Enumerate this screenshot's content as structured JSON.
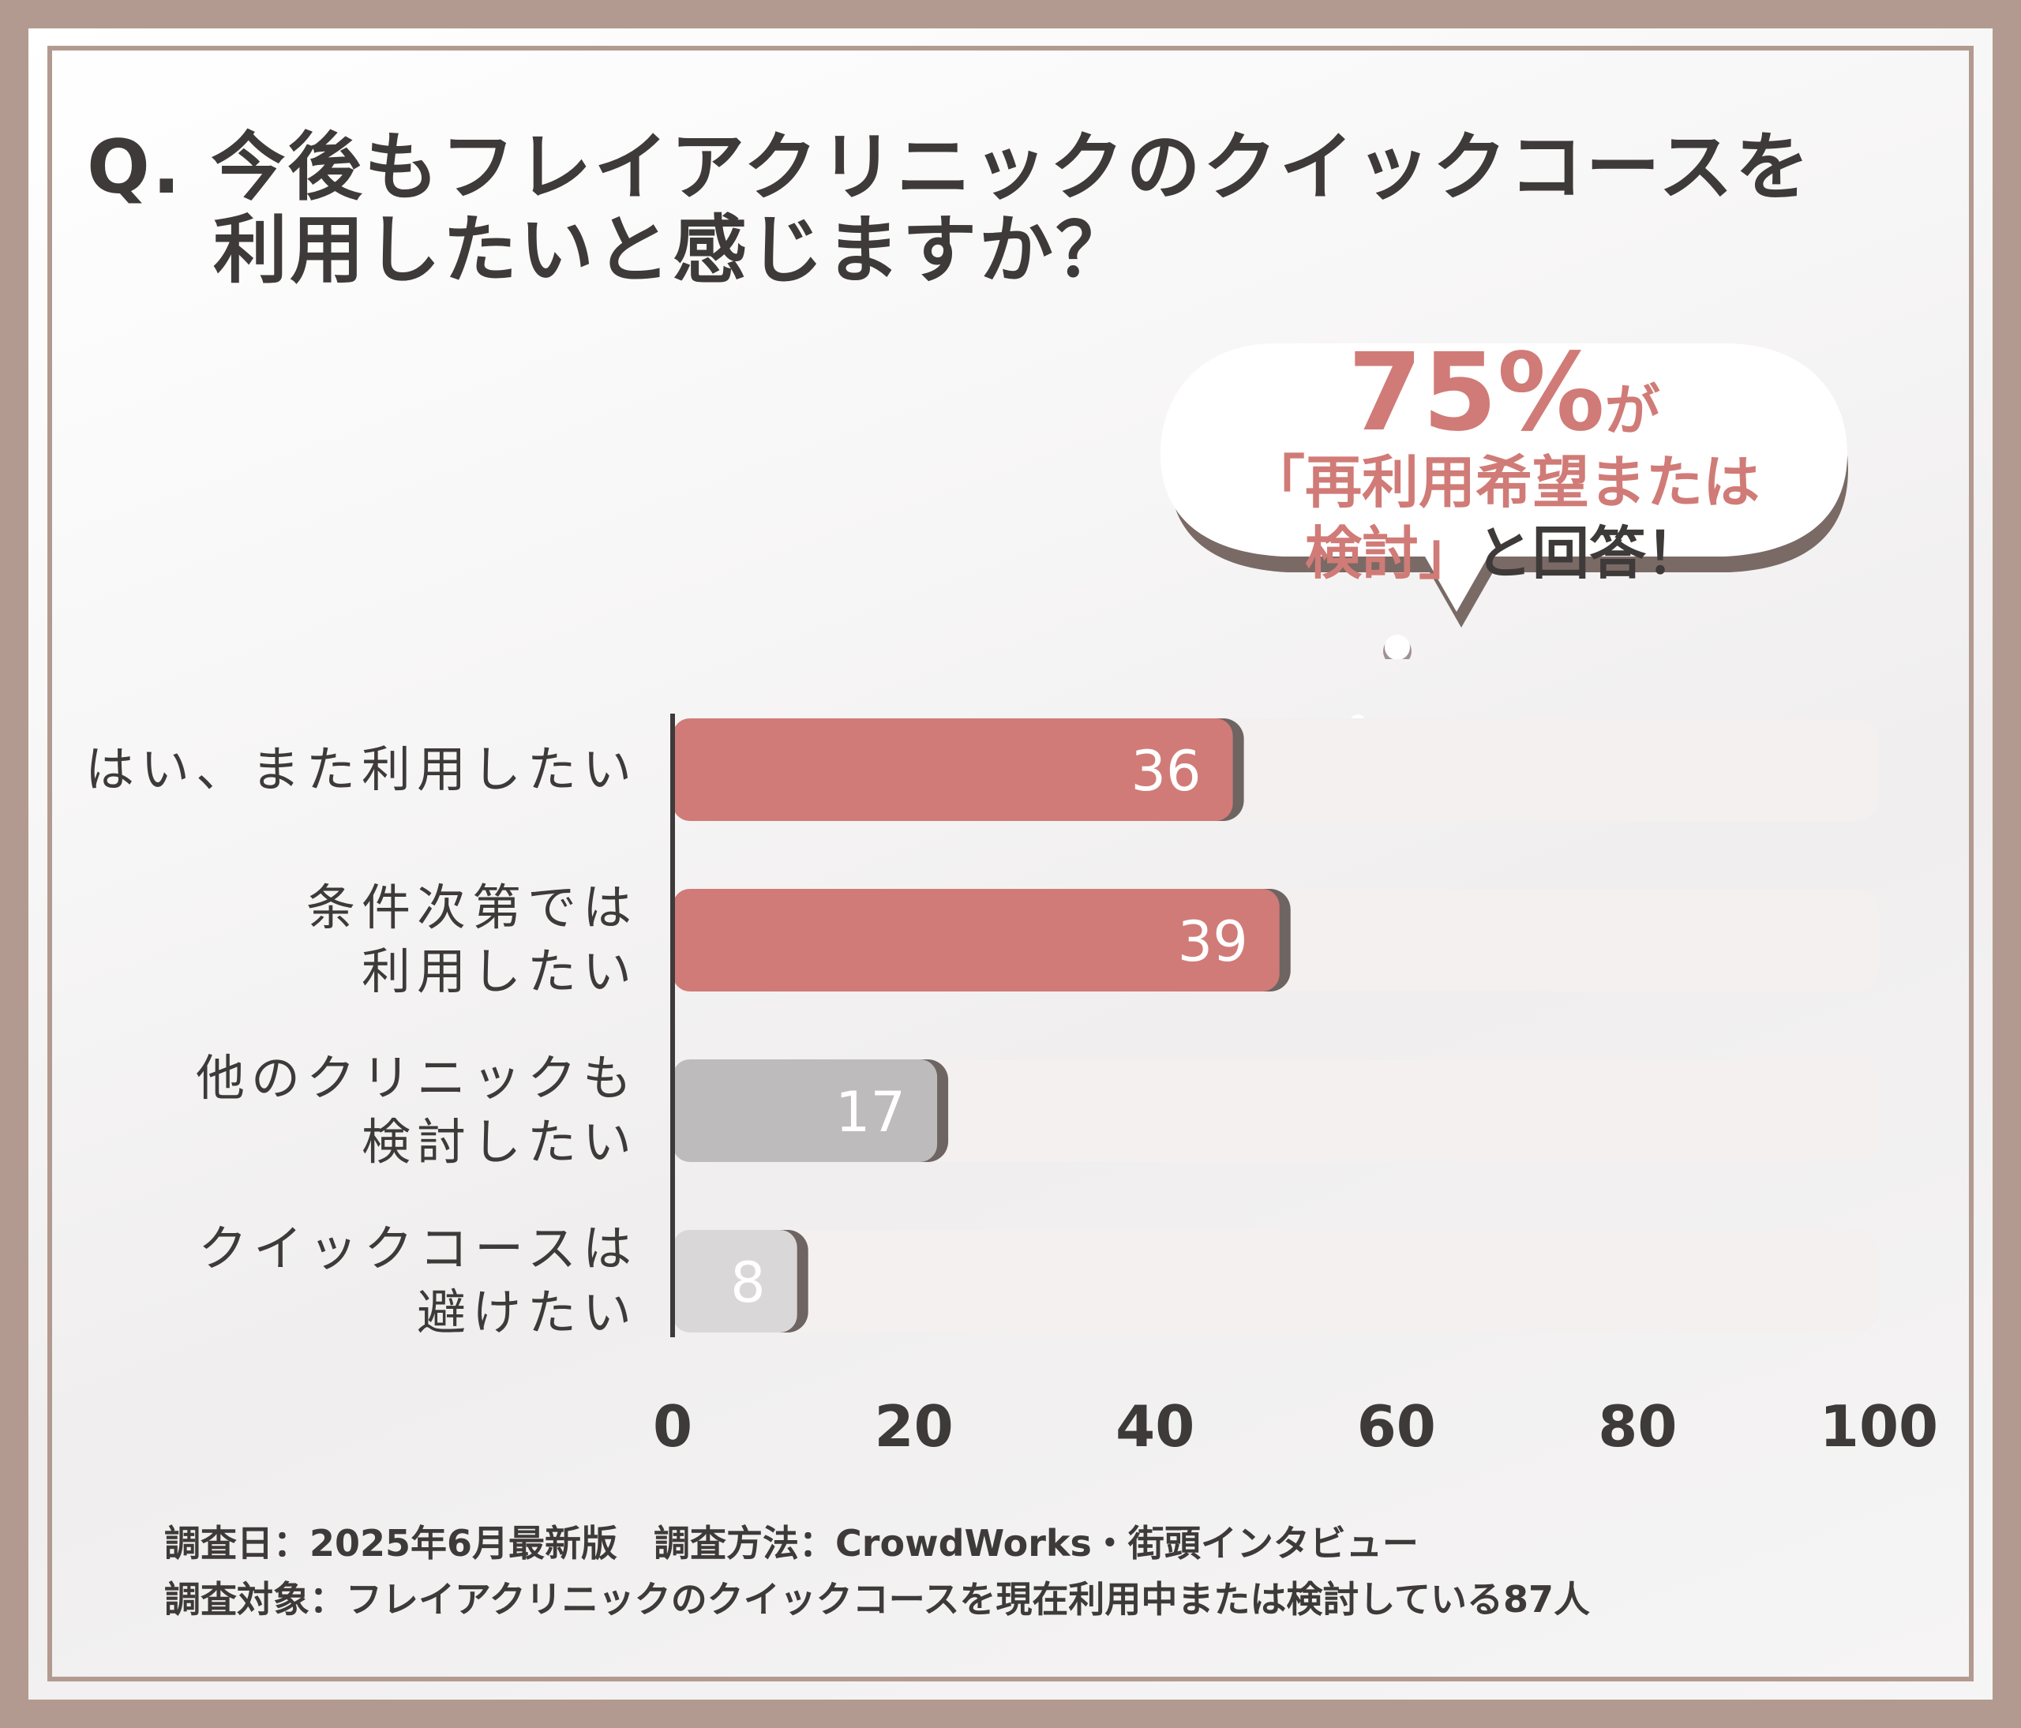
{
  "title": {
    "line1": "Q. 今後もフレイアクリニックのクイックコースを",
    "line2": "利用したいと感じますか？"
  },
  "callout": {
    "percent": "75%",
    "suffix": "が",
    "line2": "「再利用希望または",
    "line3a": "検討」",
    "line3b": "と回答！"
  },
  "chart_data": {
    "type": "bar",
    "orientation": "horizontal",
    "categories": [
      "はい、また利用したい",
      "条件次第では\n利用したい",
      "他のクリニックも\n検討したい",
      "クイックコースは\n避けたい"
    ],
    "values": [
      36,
      39,
      17,
      8
    ],
    "bar_colors": [
      "#d07b77",
      "#d07b77",
      "#bdbbbb",
      "#d9d7d7"
    ],
    "track_color": "#f3f0ef",
    "xlim": [
      0,
      100
    ],
    "xticks": [
      "0",
      "20",
      "40",
      "60",
      "80",
      "100"
    ],
    "grid": false
  },
  "footer": {
    "line1": "調査日：2025年6月最新版　調査方法：CrowdWorks・街頭インタビュー",
    "line2": "調査対象：フレイアクリニックのクイックコースを現在利用中または検討している87人"
  },
  "colors": {
    "frame": "#b39a90",
    "accent": "#d07b77",
    "text": "#3e3a39"
  }
}
